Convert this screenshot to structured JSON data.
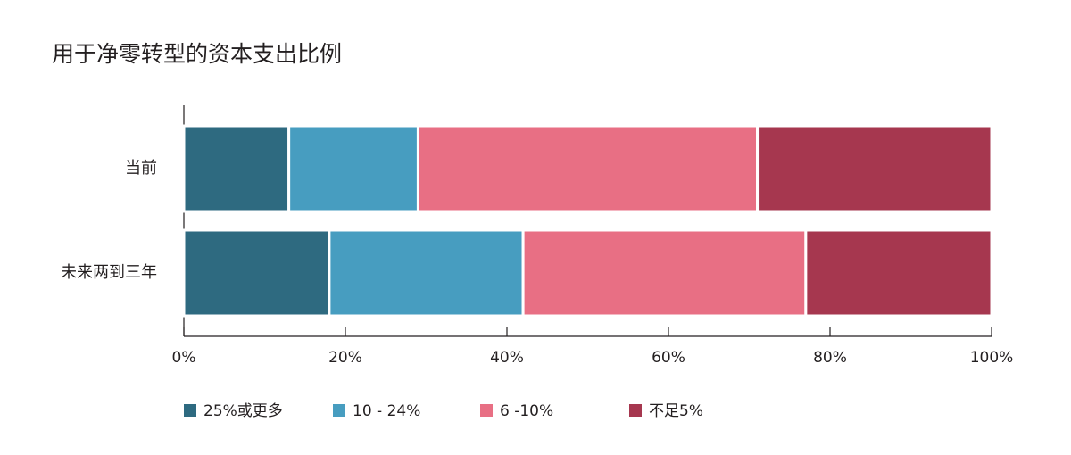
{
  "chart_data": {
    "type": "stacked-bar-horizontal",
    "title": "用于净零转型的资本支出比例",
    "categories": [
      "当前",
      "未来两到三年"
    ],
    "series": [
      {
        "name": "25%或更多",
        "color": "#2e6a80",
        "values": [
          13,
          18
        ]
      },
      {
        "name": "10 - 24%",
        "color": "#479dc0",
        "values": [
          16,
          24
        ]
      },
      {
        "name": "6 -10%",
        "color": "#e86f84",
        "values": [
          42,
          35
        ]
      },
      {
        "name": "不足5%",
        "color": "#a6374f",
        "values": [
          29,
          23
        ]
      }
    ],
    "xlim": [
      0,
      100
    ],
    "xticks": [
      {
        "value": 0,
        "label": "0%"
      },
      {
        "value": 20,
        "label": "20%"
      },
      {
        "value": 40,
        "label": "40%"
      },
      {
        "value": 60,
        "label": "60%"
      },
      {
        "value": 80,
        "label": "80%"
      },
      {
        "value": 100,
        "label": "100%"
      }
    ]
  }
}
